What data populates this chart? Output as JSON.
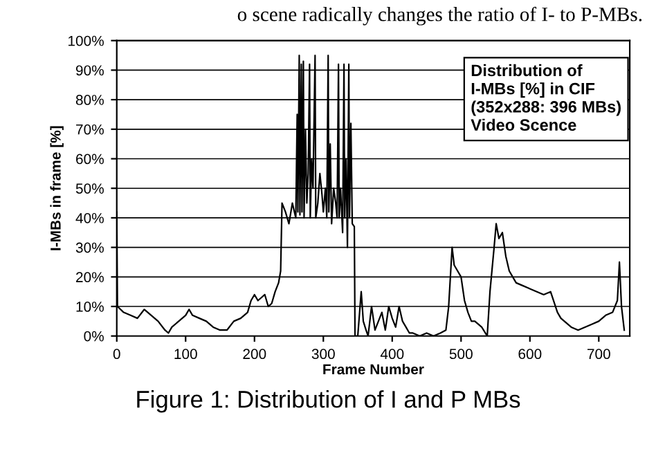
{
  "chart_data": {
    "type": "line",
    "title": "Figure 1: Distribution of I and P MBs",
    "xlabel": "Frame Number",
    "ylabel": "I-MBs in frame [%]",
    "annotations": [
      "o scene radically changes the ratio of I- to P-MBs.",
      "Distribution of\nI-MBs [%] in CIF\n(352x288: 396 MBs)\nVideo Scence"
    ],
    "series": [
      {
        "color": "#000000",
        "x": [
          0,
          1,
          10,
          20,
          30,
          40,
          50,
          60,
          70,
          75,
          80,
          90,
          100,
          105,
          110,
          120,
          130,
          140,
          150,
          160,
          170,
          180,
          190,
          195,
          200,
          205,
          210,
          215,
          220,
          225,
          230,
          235,
          238,
          240,
          245,
          250,
          255,
          260,
          262,
          263,
          265,
          266,
          268,
          269,
          271,
          272,
          274,
          276,
          278,
          280,
          281,
          283,
          285,
          288,
          289,
          292,
          295,
          298,
          300,
          303,
          305,
          307,
          308,
          310,
          312,
          315,
          318,
          320,
          322,
          323,
          325,
          328,
          330,
          331,
          333,
          335,
          337,
          338,
          340,
          342,
          345,
          346,
          350,
          355,
          358,
          362,
          365,
          370,
          375,
          380,
          385,
          390,
          395,
          400,
          405,
          410,
          415,
          420,
          425,
          430,
          440,
          450,
          460,
          470,
          478,
          482,
          487,
          490,
          495,
          500,
          505,
          510,
          515,
          520,
          530,
          538,
          542,
          548,
          551,
          555,
          560,
          565,
          570,
          580,
          590,
          600,
          610,
          620,
          630,
          640,
          645,
          650,
          660,
          670,
          680,
          690,
          700,
          710,
          720,
          727,
          730,
          733,
          737
        ],
        "values": [
          42,
          10,
          8,
          7,
          6,
          9,
          7,
          5,
          2,
          1,
          3,
          5,
          7,
          9,
          7,
          6,
          5,
          3,
          2,
          2,
          5,
          6,
          8,
          12,
          14,
          12,
          13,
          14,
          10,
          11,
          15,
          18,
          22,
          45,
          42,
          38,
          45,
          40,
          75,
          42,
          95,
          41,
          92,
          42,
          93,
          40,
          70,
          45,
          55,
          92,
          40,
          60,
          50,
          95,
          40,
          45,
          55,
          48,
          42,
          50,
          40,
          95,
          42,
          65,
          38,
          50,
          45,
          40,
          92,
          40,
          50,
          35,
          92,
          40,
          60,
          30,
          92,
          40,
          72,
          38,
          37,
          0,
          0,
          15,
          5,
          2,
          0,
          10,
          2,
          5,
          8,
          2,
          10,
          6,
          3,
          10,
          5,
          3,
          1,
          1,
          0,
          1,
          0,
          1,
          2,
          10,
          30,
          24,
          22,
          20,
          12,
          8,
          5,
          5,
          3,
          0,
          15,
          30,
          38,
          33,
          35,
          27,
          22,
          18,
          17,
          16,
          15,
          14,
          15,
          8,
          6,
          5,
          3,
          2,
          3,
          4,
          5,
          7,
          8,
          12,
          25,
          10,
          2
        ]
      }
    ],
    "xlim": [
      0,
      745
    ],
    "ylim": [
      0,
      100
    ],
    "xticks": [
      0,
      100,
      200,
      300,
      400,
      500,
      600,
      700
    ],
    "yticks": [
      {
        "value": 0,
        "label": "0%"
      },
      {
        "value": 10,
        "label": "10%"
      },
      {
        "value": 20,
        "label": "20%"
      },
      {
        "value": 30,
        "label": "30%"
      },
      {
        "value": 40,
        "label": "40%"
      },
      {
        "value": 50,
        "label": "50%"
      },
      {
        "value": 60,
        "label": "60%"
      },
      {
        "value": 70,
        "label": "70%"
      },
      {
        "value": 80,
        "label": "80%"
      },
      {
        "value": 90,
        "label": "90%"
      },
      {
        "value": 100,
        "label": "100%"
      }
    ],
    "grid": "y",
    "marker": "none",
    "line_style": "solid"
  }
}
